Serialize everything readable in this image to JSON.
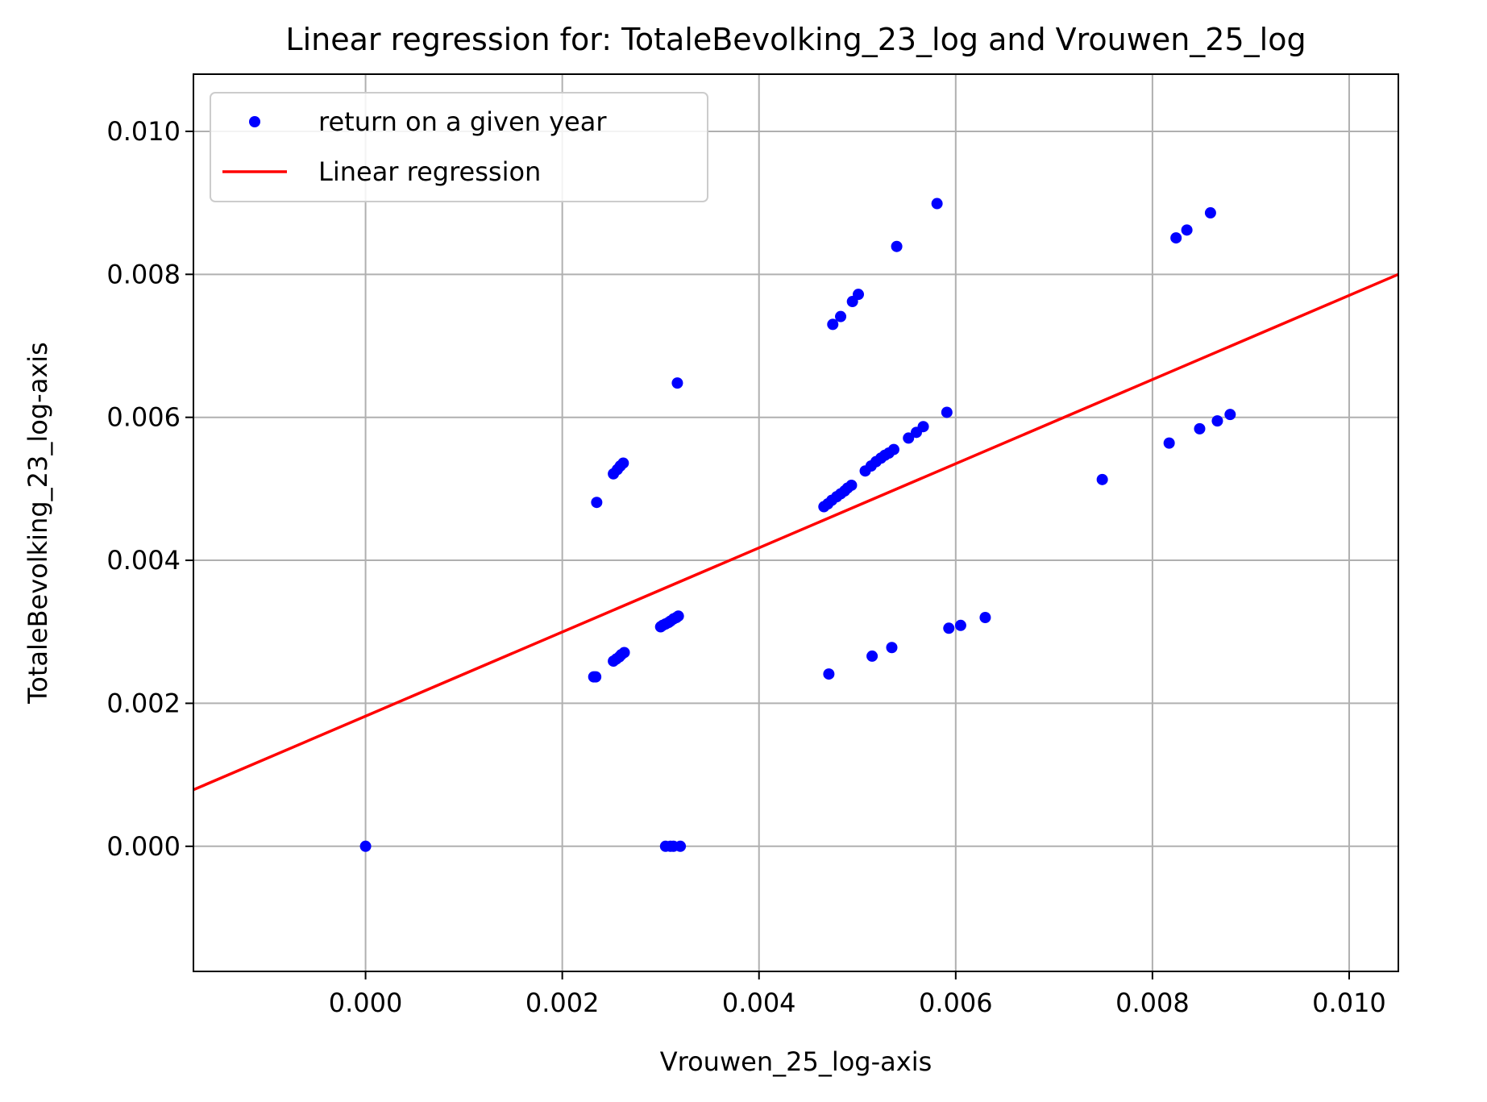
{
  "chart_data": {
    "type": "scatter",
    "title": "Linear regression for: TotaleBevolking_23_log and Vrouwen_25_log",
    "xlabel": "Vrouwen_25_log-axis",
    "ylabel": "TotaleBevolking_23_log-axis",
    "xlim": [
      -0.00175,
      0.0105
    ],
    "ylim": [
      -0.00175,
      0.0108
    ],
    "xticks": [
      0.0,
      0.002,
      0.004,
      0.006,
      0.008,
      0.01
    ],
    "xtick_labels": [
      "0.000",
      "0.002",
      "0.004",
      "0.006",
      "0.008",
      "0.010"
    ],
    "yticks": [
      0.0,
      0.002,
      0.004,
      0.006,
      0.008,
      0.01
    ],
    "ytick_labels": [
      "0.000",
      "0.002",
      "0.004",
      "0.006",
      "0.008",
      "0.010"
    ],
    "grid": true,
    "legend_placement": "top-left",
    "series": [
      {
        "name": "return on a given year",
        "kind": "scatter",
        "color": "#0000ff",
        "points": [
          [
            0.0,
            0.0
          ],
          [
            0.00305,
            0.0
          ],
          [
            0.0031,
            0.0
          ],
          [
            0.00313,
            0.0
          ],
          [
            0.0032,
            0.0
          ],
          [
            0.00232,
            0.00237
          ],
          [
            0.00234,
            0.00237
          ],
          [
            0.00252,
            0.00259
          ],
          [
            0.00255,
            0.00262
          ],
          [
            0.00258,
            0.00265
          ],
          [
            0.0026,
            0.00268
          ],
          [
            0.00263,
            0.00271
          ],
          [
            0.003,
            0.00307
          ],
          [
            0.00302,
            0.00309
          ],
          [
            0.00305,
            0.00311
          ],
          [
            0.00308,
            0.00313
          ],
          [
            0.0031,
            0.00315
          ],
          [
            0.00313,
            0.00318
          ],
          [
            0.00316,
            0.0032
          ],
          [
            0.00318,
            0.00322
          ],
          [
            0.00235,
            0.00481
          ],
          [
            0.00252,
            0.00521
          ],
          [
            0.00256,
            0.00527
          ],
          [
            0.00259,
            0.00532
          ],
          [
            0.00262,
            0.00536
          ],
          [
            0.00317,
            0.00648
          ],
          [
            0.00466,
            0.00475
          ],
          [
            0.0047,
            0.00479
          ],
          [
            0.00474,
            0.00484
          ],
          [
            0.00479,
            0.00489
          ],
          [
            0.00483,
            0.00493
          ],
          [
            0.00487,
            0.00497
          ],
          [
            0.0049,
            0.00501
          ],
          [
            0.00494,
            0.00505
          ],
          [
            0.00508,
            0.00525
          ],
          [
            0.00514,
            0.00532
          ],
          [
            0.00519,
            0.00538
          ],
          [
            0.00524,
            0.00543
          ],
          [
            0.00528,
            0.00547
          ],
          [
            0.00532,
            0.0055
          ],
          [
            0.00537,
            0.00555
          ],
          [
            0.00552,
            0.00571
          ],
          [
            0.0056,
            0.00579
          ],
          [
            0.00567,
            0.00587
          ],
          [
            0.00591,
            0.00607
          ],
          [
            0.00475,
            0.0073
          ],
          [
            0.00483,
            0.00741
          ],
          [
            0.00495,
            0.00762
          ],
          [
            0.00501,
            0.00772
          ],
          [
            0.0054,
            0.00839
          ],
          [
            0.00581,
            0.00899
          ],
          [
            0.00471,
            0.00241
          ],
          [
            0.00515,
            0.00266
          ],
          [
            0.00535,
            0.00278
          ],
          [
            0.00593,
            0.00305
          ],
          [
            0.00605,
            0.00309
          ],
          [
            0.0063,
            0.0032
          ],
          [
            0.00749,
            0.00513
          ],
          [
            0.00817,
            0.00564
          ],
          [
            0.00848,
            0.00584
          ],
          [
            0.00866,
            0.00595
          ],
          [
            0.00879,
            0.00604
          ],
          [
            0.00824,
            0.00851
          ],
          [
            0.00835,
            0.00862
          ],
          [
            0.00859,
            0.00886
          ]
        ]
      },
      {
        "name": "Linear regression",
        "kind": "line",
        "color": "#ff0000",
        "points": [
          [
            -0.00175,
            0.00079
          ],
          [
            0.0105,
            0.008
          ]
        ]
      }
    ]
  }
}
